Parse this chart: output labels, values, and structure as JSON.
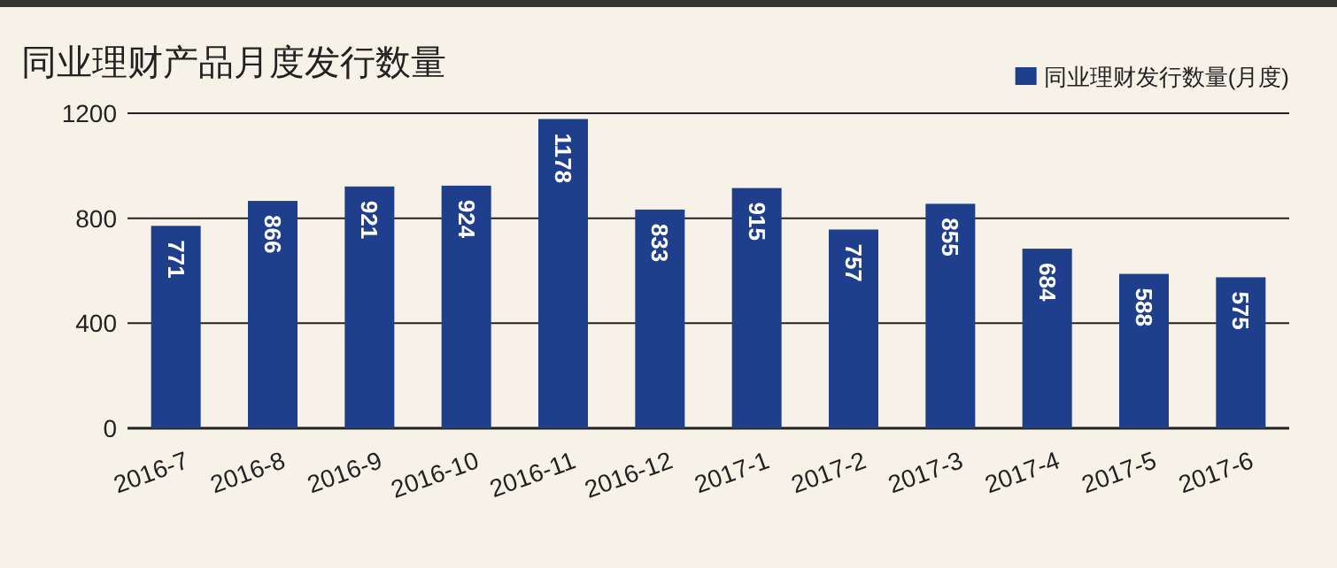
{
  "chart_data": {
    "type": "bar",
    "title": "同业理财产品月度发行数量",
    "categories": [
      "2016-7",
      "2016-8",
      "2016-9",
      "2016-10",
      "2016-11",
      "2016-12",
      "2017-1",
      "2017-2",
      "2017-3",
      "2017-4",
      "2017-5",
      "2017-6"
    ],
    "series": [
      {
        "name": "同业理财发行数量(月度)",
        "color": "#1f3e8c",
        "values": [
          771,
          866,
          921,
          924,
          1178,
          833,
          915,
          757,
          855,
          684,
          588,
          575
        ]
      }
    ],
    "ylim": [
      0,
      1200
    ],
    "yticks": [
      0,
      400,
      800,
      1200
    ],
    "grid": "y",
    "legend": "top right",
    "data_labels": true
  }
}
